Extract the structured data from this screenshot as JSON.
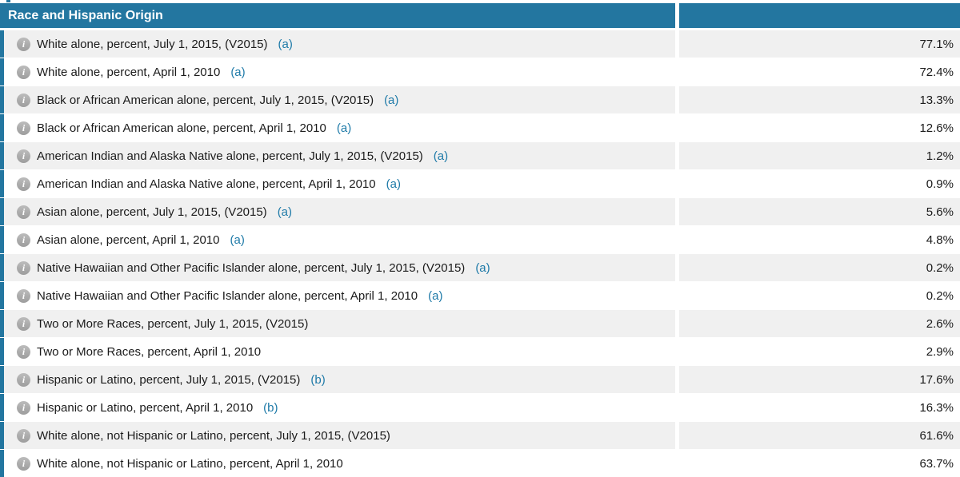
{
  "header": {
    "title": "Race and Hispanic Origin"
  },
  "icons": {
    "info": "i"
  },
  "colors": {
    "header_bg": "#2376a0",
    "accent": "#2376a0",
    "link": "#1e7aa8",
    "row_bg": "#ffffff",
    "row_alt_bg": "#f0f0f0",
    "label_text": "#1b1b1b",
    "value_text": "#1a1a1a"
  },
  "rows": [
    {
      "label": "White alone, percent, July 1, 2015, (V2015)",
      "footnote": "(a)",
      "value": "77.1%",
      "shaded": true
    },
    {
      "label": "White alone, percent, April 1, 2010",
      "footnote": "(a)",
      "value": "72.4%",
      "shaded": false
    },
    {
      "label": "Black or African American alone, percent, July 1, 2015, (V2015)",
      "footnote": "(a)",
      "value": "13.3%",
      "shaded": true
    },
    {
      "label": "Black or African American alone, percent, April 1, 2010",
      "footnote": "(a)",
      "value": "12.6%",
      "shaded": false
    },
    {
      "label": "American Indian and Alaska Native alone, percent, July 1, 2015, (V2015)",
      "footnote": "(a)",
      "value": "1.2%",
      "shaded": true
    },
    {
      "label": "American Indian and Alaska Native alone, percent, April 1, 2010",
      "footnote": "(a)",
      "value": "0.9%",
      "shaded": false
    },
    {
      "label": "Asian alone, percent, July 1, 2015, (V2015)",
      "footnote": "(a)",
      "value": "5.6%",
      "shaded": true
    },
    {
      "label": "Asian alone, percent, April 1, 2010",
      "footnote": "(a)",
      "value": "4.8%",
      "shaded": false
    },
    {
      "label": "Native Hawaiian and Other Pacific Islander alone, percent, July 1, 2015, (V2015)",
      "footnote": "(a)",
      "value": "0.2%",
      "shaded": true
    },
    {
      "label": "Native Hawaiian and Other Pacific Islander alone, percent, April 1, 2010",
      "footnote": "(a)",
      "value": "0.2%",
      "shaded": false
    },
    {
      "label": "Two or More Races, percent, July 1, 2015, (V2015)",
      "footnote": "",
      "value": "2.6%",
      "shaded": true
    },
    {
      "label": "Two or More Races, percent, April 1, 2010",
      "footnote": "",
      "value": "2.9%",
      "shaded": false
    },
    {
      "label": "Hispanic or Latino, percent, July 1, 2015, (V2015)",
      "footnote": "(b)",
      "value": "17.6%",
      "shaded": true
    },
    {
      "label": "Hispanic or Latino, percent, April 1, 2010",
      "footnote": "(b)",
      "value": "16.3%",
      "shaded": false
    },
    {
      "label": "White alone, not Hispanic or Latino, percent, July 1, 2015, (V2015)",
      "footnote": "",
      "value": "61.6%",
      "shaded": true
    },
    {
      "label": "White alone, not Hispanic or Latino, percent, April 1, 2010",
      "footnote": "",
      "value": "63.7%",
      "shaded": false
    }
  ]
}
